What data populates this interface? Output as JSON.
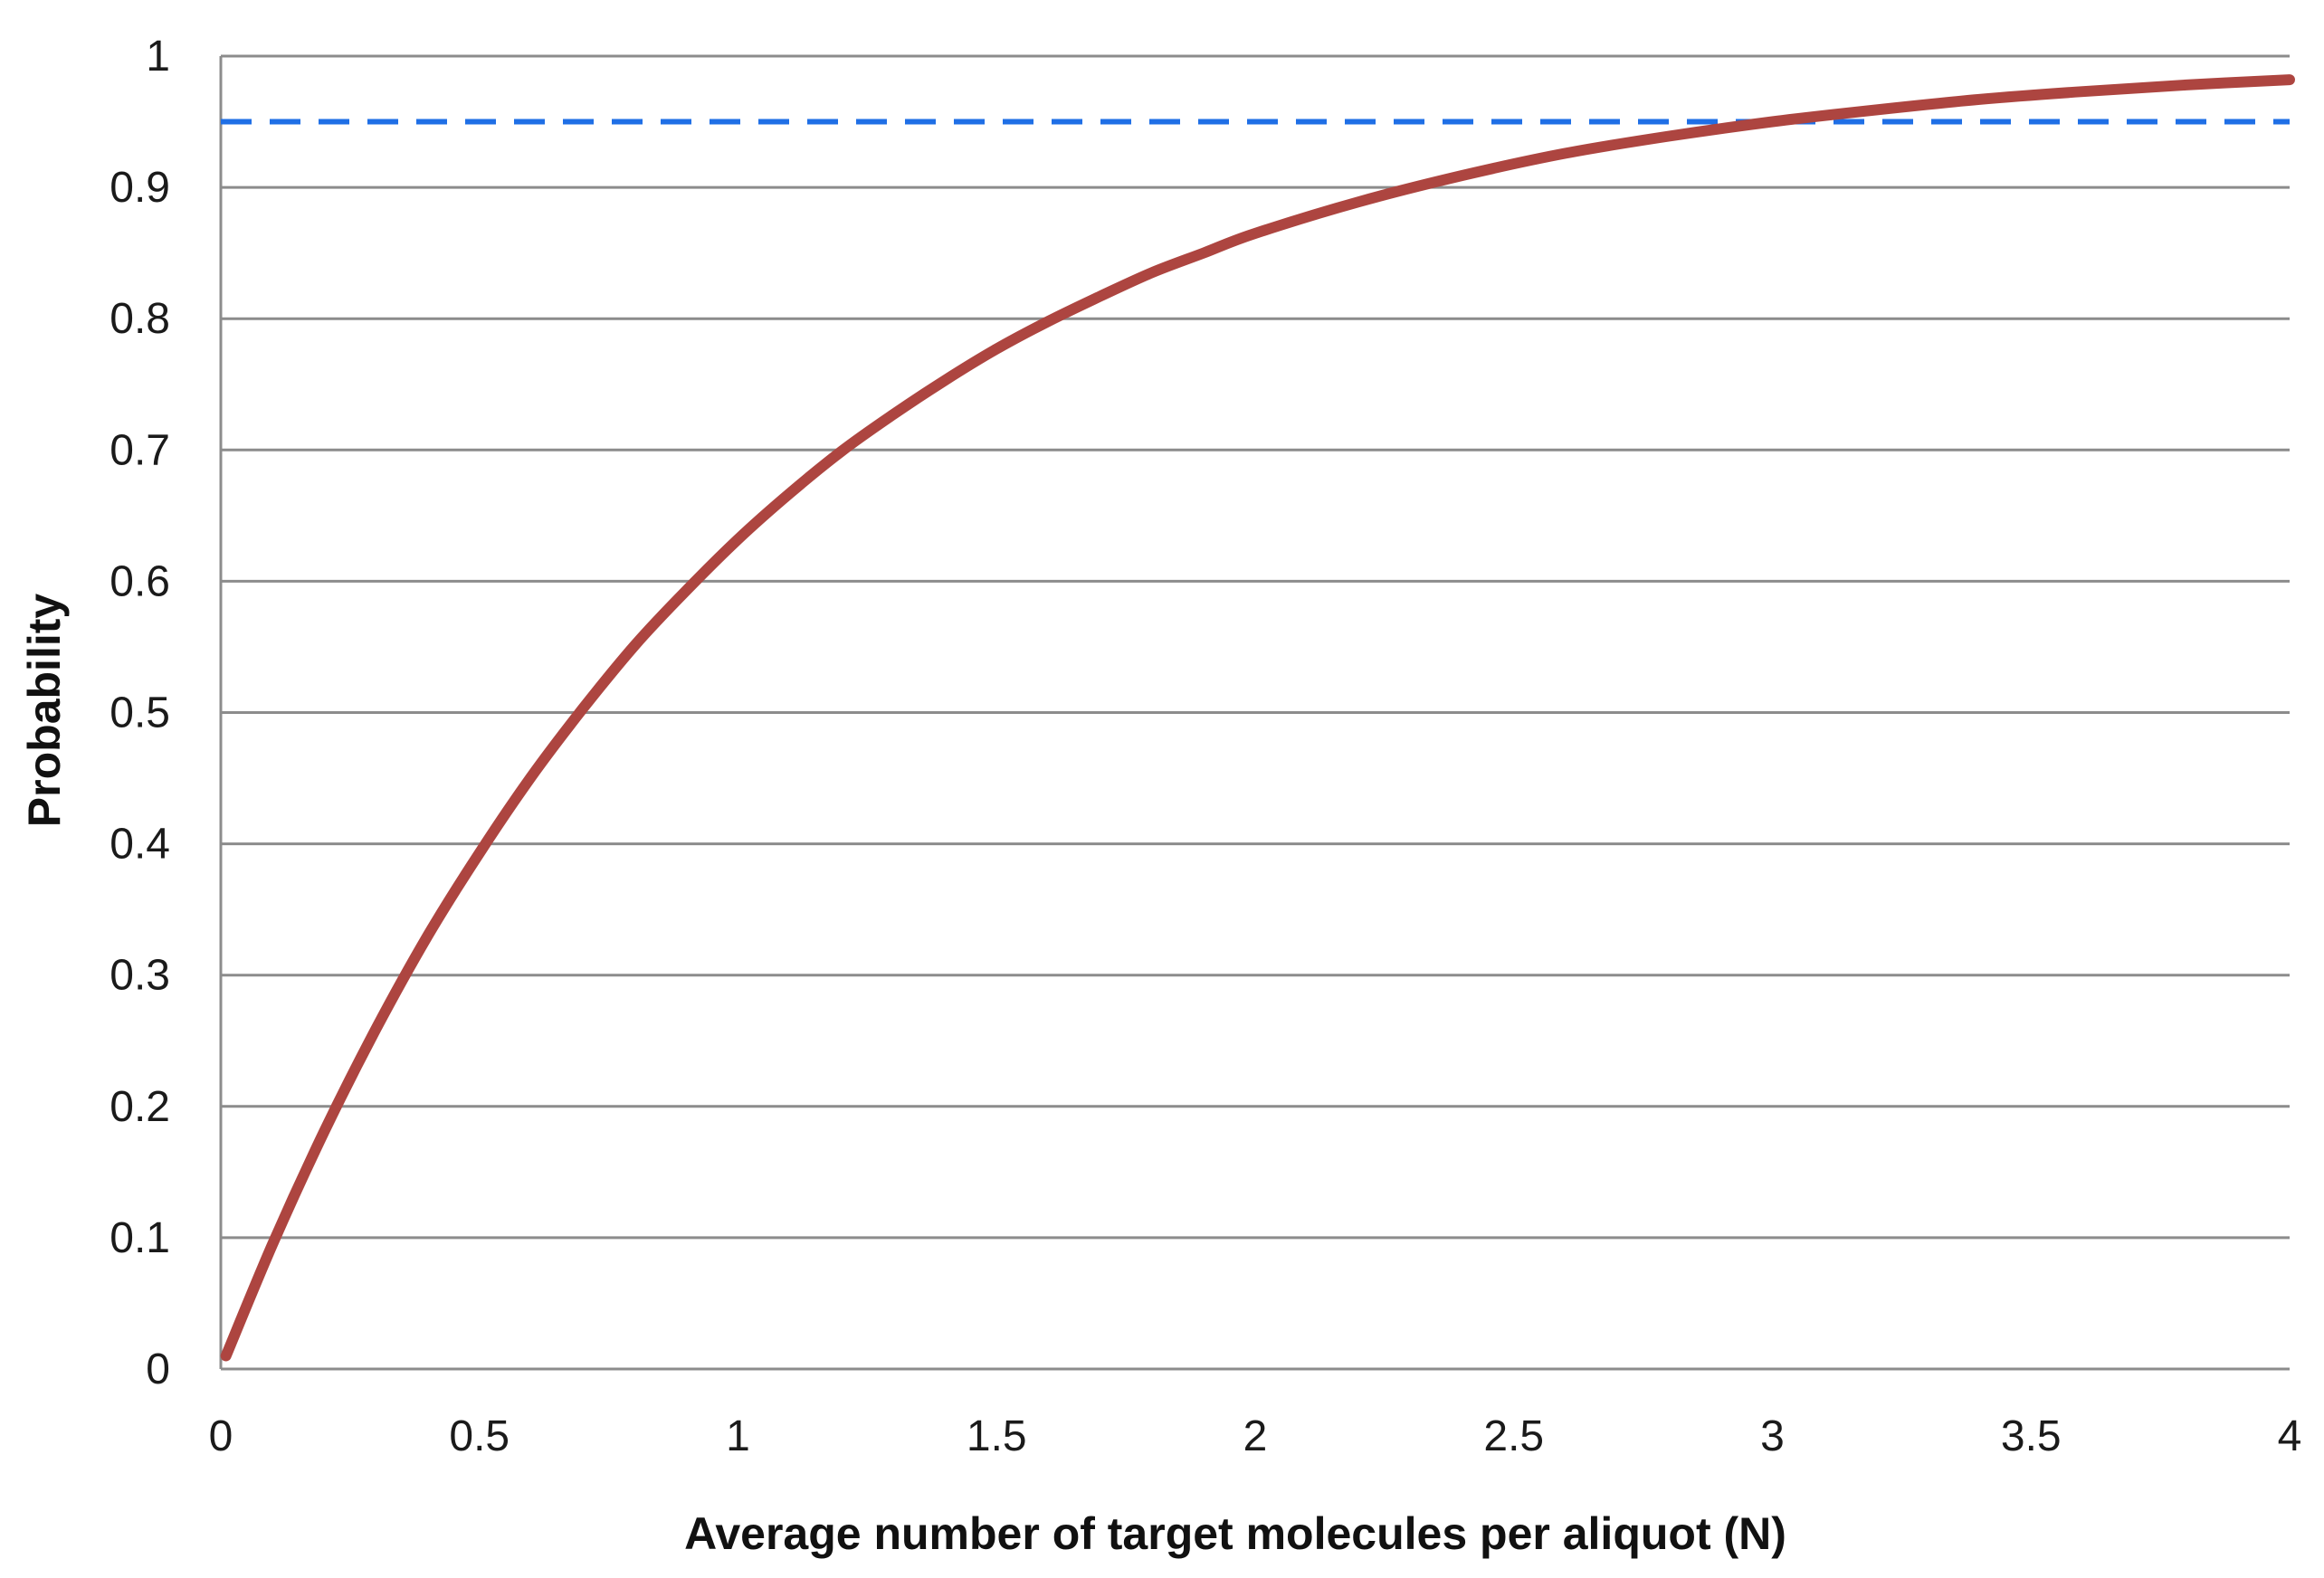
{
  "chart_data": {
    "type": "line",
    "title": "",
    "xlabel": "Average number of target molecules per aliquot  (N)",
    "ylabel": "Probability",
    "xlim": [
      0,
      4
    ],
    "ylim": [
      0,
      1
    ],
    "grid": "horizontal",
    "x_ticks": [
      {
        "value": 0,
        "label": "0"
      },
      {
        "value": 0.5,
        "label": "0.5"
      },
      {
        "value": 1,
        "label": "1"
      },
      {
        "value": 1.5,
        "label": "1.5"
      },
      {
        "value": 2,
        "label": "2"
      },
      {
        "value": 2.5,
        "label": "2.5"
      },
      {
        "value": 3,
        "label": "3"
      },
      {
        "value": 3.5,
        "label": "3.5"
      },
      {
        "value": 4,
        "label": "4"
      }
    ],
    "y_ticks": [
      {
        "value": 0,
        "label": "0"
      },
      {
        "value": 0.1,
        "label": "0.1"
      },
      {
        "value": 0.2,
        "label": "0.2"
      },
      {
        "value": 0.3,
        "label": "0.3"
      },
      {
        "value": 0.4,
        "label": "0.4"
      },
      {
        "value": 0.5,
        "label": "0.5"
      },
      {
        "value": 0.6,
        "label": "0.6"
      },
      {
        "value": 0.7,
        "label": "0.7"
      },
      {
        "value": 0.8,
        "label": "0.8"
      },
      {
        "value": 0.9,
        "label": "0.9"
      },
      {
        "value": 1,
        "label": "1"
      }
    ],
    "series": [
      {
        "color": "#ad4540",
        "style": "solid",
        "x": [
          0.01,
          0.1,
          0.2,
          0.3,
          0.4,
          0.5,
          0.6,
          0.7,
          0.8,
          0.9,
          1.0,
          1.1,
          1.2,
          1.3,
          1.4,
          1.5,
          1.6,
          1.7,
          1.8,
          1.9,
          2.0,
          2.2,
          2.4,
          2.6,
          2.8,
          3.0,
          3.2,
          3.4,
          3.6,
          3.8,
          4.0
        ],
        "values": [
          0.01,
          0.095,
          0.181,
          0.259,
          0.33,
          0.393,
          0.451,
          0.503,
          0.551,
          0.593,
          0.632,
          0.667,
          0.699,
          0.727,
          0.753,
          0.777,
          0.798,
          0.817,
          0.835,
          0.85,
          0.865,
          0.889,
          0.909,
          0.926,
          0.939,
          0.95,
          0.959,
          0.967,
          0.973,
          0.978,
          0.982
        ]
      }
    ],
    "reference_lines": [
      {
        "orientation": "horizontal",
        "value": 0.95,
        "color": "#1f6fe6",
        "style": "dashed"
      }
    ]
  }
}
